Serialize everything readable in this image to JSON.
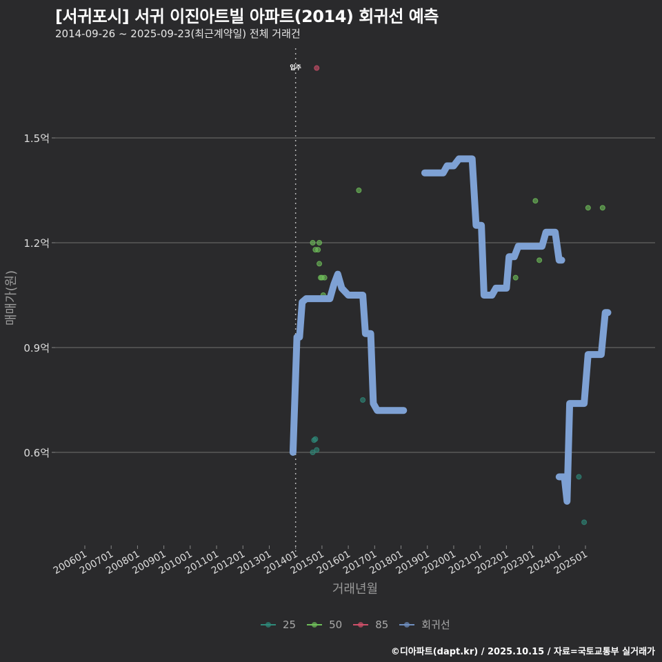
{
  "header": {
    "title": "[서귀포시] 서귀 이진아트빌 아파트(2014) 회귀선 예측",
    "subtitle": "2014-09-26 ~ 2025-09-23(최근계약일) 전체 거래건"
  },
  "footer": {
    "credit": "©디아파트(dapt.kr) / 2025.10.15 / 자료=국토교통부 실거래가"
  },
  "colors": {
    "background": "#2a2a2c",
    "grid": "#5a5a5a",
    "regression": "#7ea1d4",
    "s25": "#2e8a7a",
    "s50": "#6fbf5a",
    "s85": "#d0506a"
  },
  "legend": {
    "items": [
      {
        "label": "25",
        "color": "#2e8a7a"
      },
      {
        "label": "50",
        "color": "#6fbf5a"
      },
      {
        "label": "85",
        "color": "#d0506a"
      },
      {
        "label": "회귀선",
        "color": "#6f8fc0"
      }
    ]
  },
  "chart_data": {
    "type": "scatter",
    "title": "[서귀포시] 서귀 이진아트빌 아파트(2014) 회귀선 예측",
    "subtitle": "2014-09-26 ~ 2025-09-23(최근계약일) 전체 거래건",
    "xlabel": "거래년월",
    "ylabel": "매매가(원)",
    "x_ticks": [
      "200601",
      "200701",
      "200801",
      "200901",
      "201001",
      "201101",
      "201201",
      "201301",
      "201401",
      "201501",
      "201601",
      "201701",
      "201801",
      "201901",
      "202001",
      "202101",
      "202201",
      "202301",
      "202401",
      "202501"
    ],
    "y_ticks": [
      "0.6억",
      "0.9억",
      "1.2억",
      "1.5억"
    ],
    "y_tick_values": [
      0.6,
      0.9,
      1.2,
      1.5
    ],
    "ylim": [
      0.4,
      1.72
    ],
    "xlim": [
      2005.0,
      2026.3
    ],
    "grid": "horizontal",
    "legend_position": "bottom",
    "annotation": {
      "label": "입주",
      "x": 2014.0,
      "style": "dotted vertical line"
    },
    "series": [
      {
        "name": "25",
        "points": [
          [
            2014.65,
            0.6
          ],
          [
            2014.7,
            0.635
          ],
          [
            2014.75,
            0.638
          ],
          [
            2014.8,
            0.607
          ],
          [
            2016.55,
            0.75
          ],
          [
            2024.75,
            0.53
          ],
          [
            2024.95,
            0.4
          ]
        ]
      },
      {
        "name": "50",
        "points": [
          [
            2014.65,
            1.2
          ],
          [
            2014.75,
            1.18
          ],
          [
            2014.9,
            1.2
          ],
          [
            2014.85,
            1.18
          ],
          [
            2014.9,
            1.14
          ],
          [
            2014.95,
            1.1
          ],
          [
            2015.0,
            1.1
          ],
          [
            2015.1,
            1.1
          ],
          [
            2015.05,
            1.05
          ],
          [
            2016.4,
            1.35
          ],
          [
            2022.35,
            1.1
          ],
          [
            2023.1,
            1.32
          ],
          [
            2023.25,
            1.15
          ],
          [
            2025.1,
            1.3
          ],
          [
            2025.65,
            1.3
          ]
        ]
      },
      {
        "name": "85",
        "points": [
          [
            2014.8,
            1.7
          ]
        ]
      }
    ],
    "regression": {
      "name": "회귀선",
      "segments": [
        [
          [
            2013.9,
            0.6
          ],
          [
            2014.0,
            0.82
          ],
          [
            2014.05,
            0.93
          ],
          [
            2014.15,
            0.93
          ],
          [
            2014.25,
            1.03
          ],
          [
            2014.4,
            1.04
          ],
          [
            2015.3,
            1.04
          ],
          [
            2015.45,
            1.08
          ],
          [
            2015.6,
            1.11
          ],
          [
            2015.75,
            1.07
          ],
          [
            2016.0,
            1.05
          ],
          [
            2016.55,
            1.05
          ],
          [
            2016.65,
            0.94
          ],
          [
            2016.85,
            0.94
          ],
          [
            2016.95,
            0.74
          ],
          [
            2017.1,
            0.72
          ],
          [
            2018.1,
            0.72
          ]
        ],
        [
          [
            2018.9,
            1.4
          ],
          [
            2019.6,
            1.4
          ],
          [
            2019.75,
            1.42
          ],
          [
            2020.0,
            1.42
          ],
          [
            2020.2,
            1.44
          ],
          [
            2020.7,
            1.44
          ],
          [
            2020.85,
            1.25
          ],
          [
            2021.05,
            1.25
          ],
          [
            2021.15,
            1.05
          ],
          [
            2021.45,
            1.05
          ],
          [
            2021.6,
            1.07
          ],
          [
            2022.0,
            1.07
          ],
          [
            2022.1,
            1.16
          ],
          [
            2022.3,
            1.16
          ],
          [
            2022.45,
            1.19
          ],
          [
            2023.35,
            1.19
          ],
          [
            2023.5,
            1.23
          ],
          [
            2023.85,
            1.23
          ],
          [
            2024.0,
            1.15
          ],
          [
            2024.1,
            1.15
          ]
        ],
        [
          [
            2024.0,
            0.53
          ],
          [
            2024.2,
            0.53
          ],
          [
            2024.3,
            0.46
          ],
          [
            2024.4,
            0.74
          ],
          [
            2024.95,
            0.74
          ],
          [
            2025.1,
            0.88
          ],
          [
            2025.6,
            0.88
          ],
          [
            2025.75,
            1.0
          ],
          [
            2025.85,
            1.0
          ]
        ]
      ]
    }
  }
}
